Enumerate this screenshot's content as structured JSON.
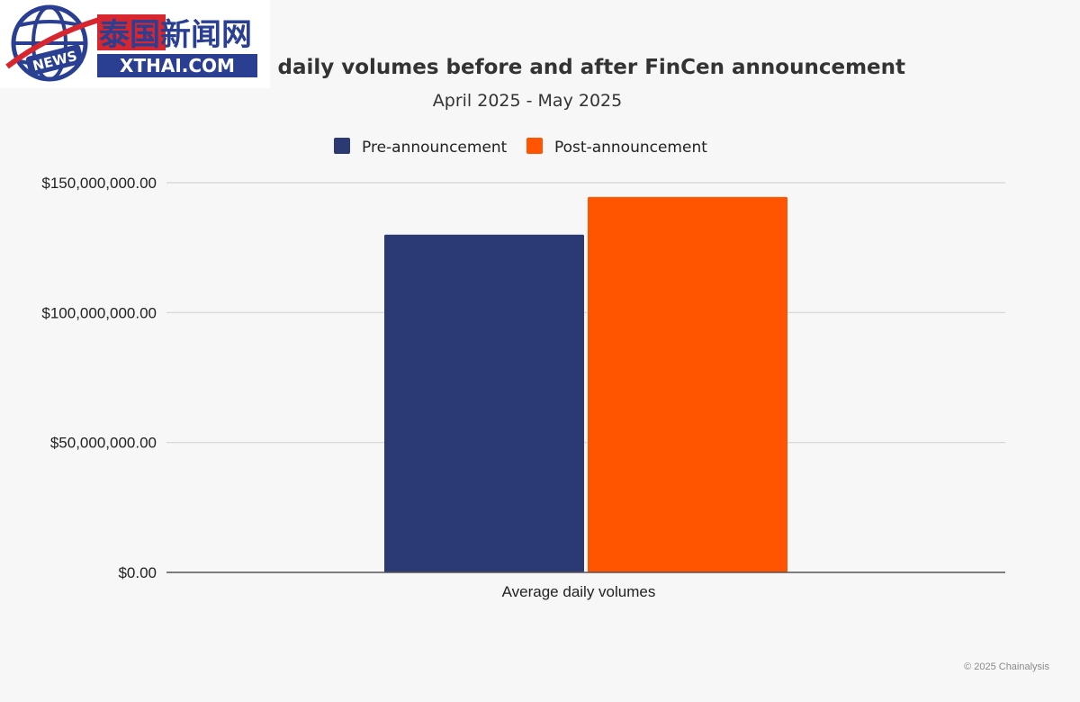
{
  "chart_data": {
    "type": "bar",
    "title": "Average daily volumes before and after FinCen announcement",
    "subtitle": "April 2025 - May 2025",
    "categories": [
      "Average daily volumes"
    ],
    "series": [
      {
        "name": "Pre-announcement",
        "values": [
          130000000
        ],
        "color": "#2b3a72"
      },
      {
        "name": "Post-announcement",
        "values": [
          144500000
        ],
        "color": "#ff5500"
      }
    ],
    "yticks": [
      0,
      50000000,
      100000000,
      150000000
    ],
    "ytick_labels": [
      "$0.00",
      "$50,000,000.00",
      "$100,000,000.00",
      "$150,000,000.00"
    ],
    "ylim": [
      0,
      150000000
    ],
    "grid": true,
    "legend_position": "top-center"
  },
  "credit": "© 2025 Chainalysis",
  "watermark": {
    "text_cn": "泰国新闻网",
    "text_domain": "XTHAI.COM",
    "text_badge": "NEWS",
    "colors": {
      "red": "#d8262e",
      "blue": "#2a3f92"
    }
  }
}
